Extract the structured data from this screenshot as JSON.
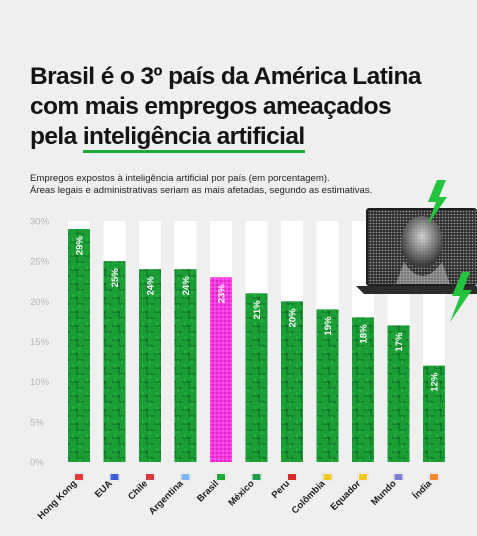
{
  "headline": {
    "line1": "Brasil é o 3º país da América Latina",
    "line2": "com mais empregos ameaçados",
    "line3_prefix": "pela ",
    "line3_highlight": "inteligência artificial"
  },
  "subtitle": {
    "line1": "Empregos expostos à inteligência artificial por país (em porcentagem).",
    "line2": "Áreas legais e administrativas seriam as mais afetadas, segundo as estimativas."
  },
  "colors": {
    "bar": "#1a9e35",
    "bar_dark": "#0f6e22",
    "highlight_bar": "#ff2fe0",
    "highlight_bar_dark": "#c21aa8",
    "track": "#ffffff",
    "accent": "#1fa83a",
    "bolt": "#22c33d"
  },
  "chart_data": {
    "type": "bar",
    "categories": [
      "Hong Kong",
      "EUA",
      "Chile",
      "Argentina",
      "Brasil",
      "México",
      "Peru",
      "Colômbia",
      "Equador",
      "Mundo",
      "Índia"
    ],
    "values": [
      29,
      25,
      24,
      24,
      23,
      21,
      20,
      19,
      18,
      17,
      12
    ],
    "value_labels": [
      "29%",
      "25%",
      "24%",
      "24%",
      "23%",
      "21%",
      "20%",
      "19%",
      "18%",
      "17%",
      "12%"
    ],
    "highlight": "Brasil",
    "ylim": [
      0,
      30
    ],
    "yticks": [
      "0%",
      "5%",
      "10%",
      "15%",
      "20%",
      "25%",
      "30%"
    ],
    "flag_icons": [
      "hong-kong-flag-icon",
      "usa-flag-icon",
      "chile-flag-icon",
      "argentina-flag-icon",
      "brazil-flag-icon",
      "mexico-flag-icon",
      "peru-flag-icon",
      "colombia-flag-icon",
      "ecuador-flag-icon",
      "world-flag-icon",
      "india-flag-icon"
    ],
    "grid": false
  },
  "illustration": {
    "icon": "ai-head-laptop-icon",
    "bolt_icon": "lightning-bolt-icon"
  }
}
